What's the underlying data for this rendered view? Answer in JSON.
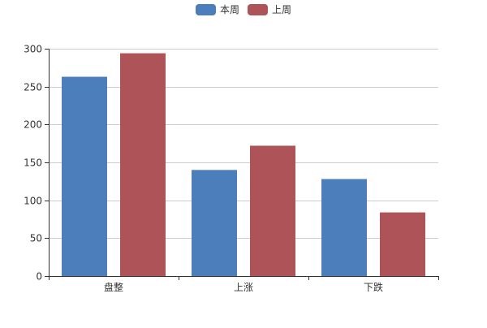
{
  "chart_data": {
    "type": "bar",
    "categories": [
      "盘整",
      "上涨",
      "下跌"
    ],
    "series": [
      {
        "name": "本周",
        "values": [
          263,
          140,
          128
        ],
        "color": "#4c7ebb"
      },
      {
        "name": "上周",
        "values": [
          294,
          172,
          84
        ],
        "color": "#ae5458"
      }
    ],
    "ylim": [
      0,
      300
    ],
    "yticks": [
      0,
      50,
      100,
      150,
      200,
      250,
      300
    ],
    "grid": true,
    "legend": "top-center",
    "xlabel": "",
    "ylabel": ""
  }
}
